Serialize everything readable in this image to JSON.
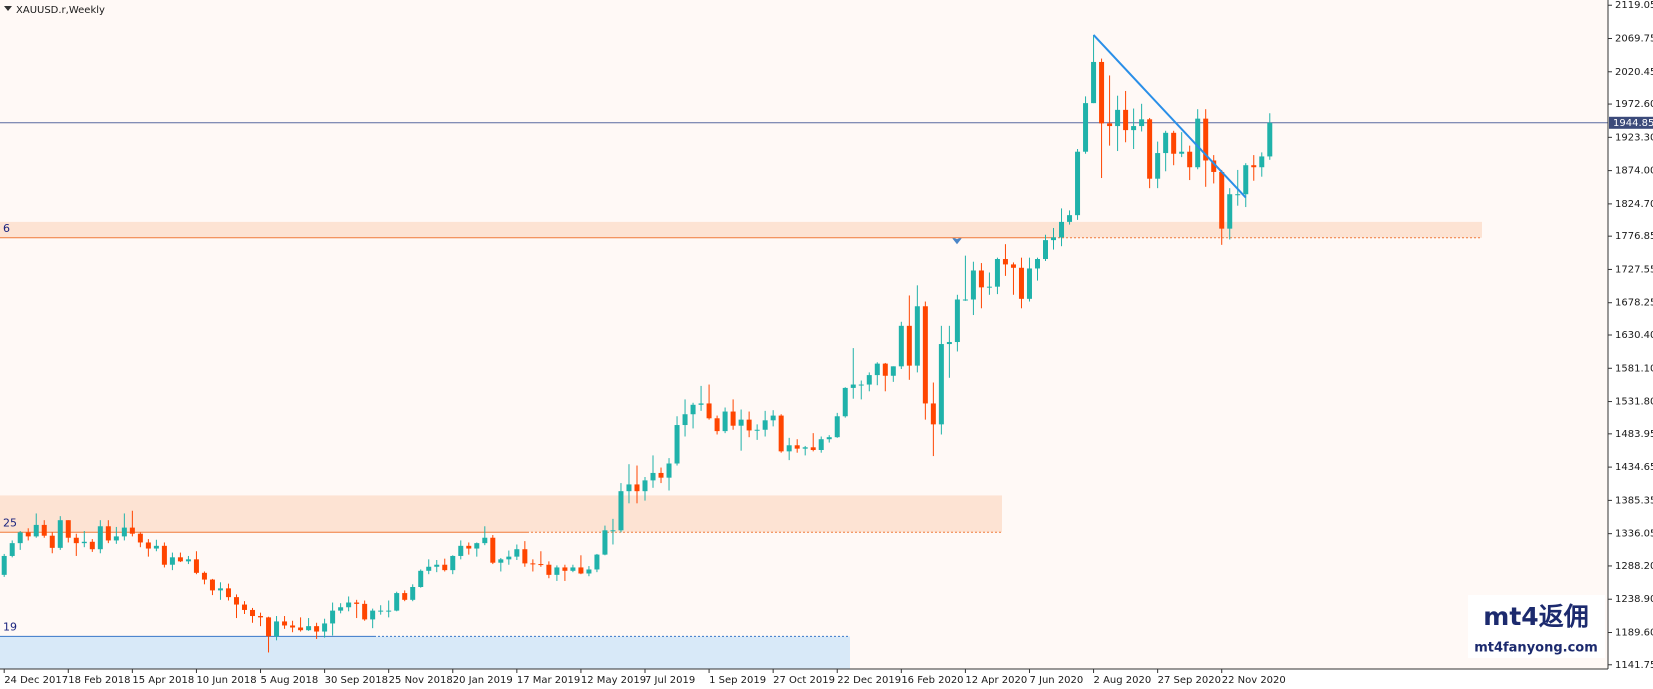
{
  "chart_data": {
    "type": "candlestick",
    "title": "XAUUSD.r,Weekly",
    "categories": [
      "24 Dec 2017",
      null,
      null,
      null,
      null,
      null,
      null,
      null,
      "18 Feb 2018",
      null,
      null,
      null,
      null,
      null,
      null,
      null,
      "15 Apr 2018",
      null,
      null,
      null,
      null,
      null,
      null,
      null,
      "10 Jun 2018",
      null,
      null,
      null,
      null,
      null,
      null,
      null,
      "5 Aug 2018",
      null,
      null,
      null,
      null,
      null,
      null,
      null,
      "30 Sep 2018",
      null,
      null,
      null,
      null,
      null,
      null,
      null,
      "25 Nov 2018",
      null,
      null,
      null,
      null,
      null,
      null,
      null,
      "20 Jan 2019",
      null,
      null,
      null,
      null,
      null,
      null,
      null,
      "17 Mar 2019",
      null,
      null,
      null,
      null,
      null,
      null,
      null,
      "12 May 2019",
      null,
      null,
      null,
      null,
      null,
      null,
      null,
      "7 Jul 2019",
      null,
      null,
      null,
      null,
      null,
      null,
      null,
      "1 Sep 2019",
      null,
      null,
      null,
      null,
      null,
      null,
      null,
      "27 Oct 2019",
      null,
      null,
      null,
      null,
      null,
      null,
      null,
      "22 Dec 2019",
      null,
      null,
      null,
      null,
      null,
      null,
      null,
      "16 Feb 2020",
      null,
      null,
      null,
      null,
      null,
      null,
      null,
      "12 Apr 2020",
      null,
      null,
      null,
      null,
      null,
      null,
      null,
      "7 Jun 2020",
      null,
      null,
      null,
      null,
      null,
      null,
      null,
      "2 Aug 2020",
      null,
      null,
      null,
      null,
      null,
      null,
      null,
      "27 Sep 2020",
      null,
      null,
      null,
      null,
      null,
      null,
      null,
      "22 Nov 2020",
      null,
      null,
      null,
      null,
      null,
      null
    ],
    "ohlc": [
      [
        1275,
        1306,
        1272,
        1303
      ],
      [
        1303,
        1326,
        1301,
        1322
      ],
      [
        1322,
        1340,
        1312,
        1338
      ],
      [
        1338,
        1344,
        1326,
        1332
      ],
      [
        1332,
        1366,
        1330,
        1349
      ],
      [
        1349,
        1356,
        1330,
        1333
      ],
      [
        1333,
        1338,
        1307,
        1315
      ],
      [
        1315,
        1362,
        1312,
        1356
      ],
      [
        1356,
        1356,
        1323,
        1330
      ],
      [
        1330,
        1336,
        1303,
        1322
      ],
      [
        1322,
        1340,
        1316,
        1324
      ],
      [
        1324,
        1328,
        1309,
        1313
      ],
      [
        1313,
        1356,
        1307,
        1347
      ],
      [
        1347,
        1356,
        1322,
        1326
      ],
      [
        1326,
        1346,
        1321,
        1332
      ],
      [
        1332,
        1366,
        1326,
        1345
      ],
      [
        1345,
        1370,
        1332,
        1336
      ],
      [
        1336,
        1338,
        1316,
        1323
      ],
      [
        1323,
        1328,
        1302,
        1314
      ],
      [
        1314,
        1327,
        1310,
        1318
      ],
      [
        1318,
        1323,
        1286,
        1290
      ],
      [
        1290,
        1308,
        1282,
        1301
      ],
      [
        1301,
        1308,
        1294,
        1295
      ],
      [
        1295,
        1303,
        1291,
        1298
      ],
      [
        1298,
        1310,
        1276,
        1278
      ],
      [
        1278,
        1280,
        1261,
        1268
      ],
      [
        1268,
        1269,
        1245,
        1252
      ],
      [
        1252,
        1264,
        1238,
        1255
      ],
      [
        1255,
        1262,
        1237,
        1242
      ],
      [
        1242,
        1246,
        1211,
        1231
      ],
      [
        1231,
        1236,
        1217,
        1223
      ],
      [
        1223,
        1226,
        1204,
        1214
      ],
      [
        1214,
        1219,
        1199,
        1212
      ],
      [
        1212,
        1213,
        1160,
        1184
      ],
      [
        1184,
        1214,
        1178,
        1206
      ],
      [
        1206,
        1214,
        1195,
        1200
      ],
      [
        1200,
        1207,
        1190,
        1197
      ],
      [
        1197,
        1212,
        1191,
        1193
      ],
      [
        1193,
        1211,
        1192,
        1199
      ],
      [
        1199,
        1204,
        1180,
        1191
      ],
      [
        1191,
        1210,
        1182,
        1203
      ],
      [
        1203,
        1234,
        1185,
        1222
      ],
      [
        1222,
        1233,
        1218,
        1227
      ],
      [
        1227,
        1243,
        1221,
        1234
      ],
      [
        1234,
        1238,
        1211,
        1232
      ],
      [
        1232,
        1237,
        1207,
        1209
      ],
      [
        1209,
        1225,
        1196,
        1222
      ],
      [
        1222,
        1230,
        1216,
        1222
      ],
      [
        1222,
        1237,
        1212,
        1222
      ],
      [
        1222,
        1250,
        1221,
        1248
      ],
      [
        1248,
        1252,
        1236,
        1238
      ],
      [
        1238,
        1261,
        1236,
        1257
      ],
      [
        1257,
        1283,
        1256,
        1281
      ],
      [
        1281,
        1298,
        1276,
        1287
      ],
      [
        1287,
        1297,
        1279,
        1290
      ],
      [
        1290,
        1299,
        1280,
        1282
      ],
      [
        1282,
        1304,
        1276,
        1303
      ],
      [
        1303,
        1326,
        1298,
        1318
      ],
      [
        1318,
        1323,
        1305,
        1314
      ],
      [
        1314,
        1323,
        1302,
        1322
      ],
      [
        1322,
        1347,
        1319,
        1330
      ],
      [
        1330,
        1334,
        1291,
        1293
      ],
      [
        1293,
        1300,
        1280,
        1298
      ],
      [
        1298,
        1311,
        1290,
        1302
      ],
      [
        1302,
        1320,
        1297,
        1313
      ],
      [
        1313,
        1325,
        1287,
        1292
      ],
      [
        1292,
        1298,
        1280,
        1291
      ],
      [
        1291,
        1310,
        1287,
        1290
      ],
      [
        1290,
        1295,
        1270,
        1275
      ],
      [
        1275,
        1289,
        1266,
        1286
      ],
      [
        1286,
        1290,
        1266,
        1281
      ],
      [
        1281,
        1290,
        1279,
        1286
      ],
      [
        1286,
        1304,
        1276,
        1277
      ],
      [
        1277,
        1288,
        1273,
        1283
      ],
      [
        1283,
        1306,
        1279,
        1305
      ],
      [
        1305,
        1348,
        1304,
        1341
      ],
      [
        1341,
        1358,
        1320,
        1341
      ],
      [
        1341,
        1411,
        1338,
        1399
      ],
      [
        1399,
        1439,
        1381,
        1409
      ],
      [
        1409,
        1437,
        1381,
        1399
      ],
      [
        1399,
        1420,
        1385,
        1415
      ],
      [
        1415,
        1452,
        1404,
        1426
      ],
      [
        1426,
        1434,
        1411,
        1419
      ],
      [
        1419,
        1448,
        1400,
        1440
      ],
      [
        1440,
        1510,
        1437,
        1497
      ],
      [
        1497,
        1535,
        1480,
        1513
      ],
      [
        1513,
        1530,
        1492,
        1527
      ],
      [
        1527,
        1555,
        1518,
        1529
      ],
      [
        1529,
        1557,
        1505,
        1507
      ],
      [
        1507,
        1511,
        1483,
        1488
      ],
      [
        1488,
        1523,
        1485,
        1517
      ],
      [
        1517,
        1535,
        1490,
        1496
      ],
      [
        1496,
        1520,
        1459,
        1505
      ],
      [
        1505,
        1517,
        1479,
        1489
      ],
      [
        1489,
        1498,
        1475,
        1490
      ],
      [
        1490,
        1518,
        1480,
        1504
      ],
      [
        1504,
        1519,
        1495,
        1511
      ],
      [
        1511,
        1513,
        1456,
        1458
      ],
      [
        1458,
        1478,
        1445,
        1467
      ],
      [
        1467,
        1476,
        1456,
        1462
      ],
      [
        1462,
        1466,
        1452,
        1464
      ],
      [
        1464,
        1485,
        1458,
        1460
      ],
      [
        1460,
        1480,
        1456,
        1476
      ],
      [
        1476,
        1482,
        1471,
        1479
      ],
      [
        1479,
        1515,
        1478,
        1510
      ],
      [
        1510,
        1553,
        1508,
        1552
      ],
      [
        1552,
        1611,
        1536,
        1557
      ],
      [
        1557,
        1563,
        1535,
        1557
      ],
      [
        1557,
        1575,
        1547,
        1571
      ],
      [
        1571,
        1590,
        1556,
        1588
      ],
      [
        1588,
        1589,
        1547,
        1570
      ],
      [
        1570,
        1584,
        1561,
        1584
      ],
      [
        1584,
        1650,
        1580,
        1644
      ],
      [
        1644,
        1689,
        1564,
        1585
      ],
      [
        1585,
        1704,
        1575,
        1673
      ],
      [
        1673,
        1680,
        1505,
        1529
      ],
      [
        1529,
        1560,
        1451,
        1498
      ],
      [
        1498,
        1644,
        1483,
        1617
      ],
      [
        1617,
        1644,
        1567,
        1620
      ],
      [
        1620,
        1690,
        1606,
        1683
      ],
      [
        1683,
        1748,
        1681,
        1683
      ],
      [
        1683,
        1739,
        1660,
        1726
      ],
      [
        1726,
        1737,
        1670,
        1701
      ],
      [
        1701,
        1723,
        1690,
        1702
      ],
      [
        1702,
        1745,
        1691,
        1743
      ],
      [
        1743,
        1765,
        1718,
        1735
      ],
      [
        1735,
        1738,
        1690,
        1730
      ],
      [
        1730,
        1745,
        1670,
        1684
      ],
      [
        1684,
        1745,
        1680,
        1729
      ],
      [
        1729,
        1745,
        1711,
        1743
      ],
      [
        1743,
        1779,
        1740,
        1771
      ],
      [
        1771,
        1789,
        1757,
        1775
      ],
      [
        1775,
        1818,
        1762,
        1798
      ],
      [
        1798,
        1815,
        1794,
        1808
      ],
      [
        1808,
        1906,
        1801,
        1902
      ],
      [
        1902,
        1984,
        1899,
        1974
      ],
      [
        1974,
        2075,
        1974,
        2035
      ],
      [
        2035,
        2040,
        1863,
        1944
      ],
      [
        1944,
        2015,
        1911,
        1940
      ],
      [
        1940,
        1985,
        1903,
        1964
      ],
      [
        1964,
        1992,
        1916,
        1934
      ],
      [
        1934,
        1966,
        1906,
        1940
      ],
      [
        1940,
        1973,
        1932,
        1950
      ],
      [
        1950,
        1952,
        1848,
        1862
      ],
      [
        1862,
        1917,
        1848,
        1900
      ],
      [
        1900,
        1933,
        1873,
        1930
      ],
      [
        1930,
        1933,
        1882,
        1899
      ],
      [
        1899,
        1931,
        1894,
        1902
      ],
      [
        1902,
        1911,
        1860,
        1879
      ],
      [
        1879,
        1965,
        1876,
        1951
      ],
      [
        1951,
        1965,
        1850,
        1889
      ],
      [
        1889,
        1897,
        1855,
        1872
      ],
      [
        1872,
        1875,
        1764,
        1788
      ],
      [
        1788,
        1848,
        1772,
        1839
      ],
      [
        1839,
        1875,
        1822,
        1839
      ],
      [
        1839,
        1885,
        1820,
        1882
      ],
      [
        1882,
        1897,
        1859,
        1879
      ],
      [
        1879,
        1901,
        1865,
        1895
      ],
      [
        1895,
        1959,
        1890,
        1944.85
      ]
    ],
    "up_color": "#20b2aa",
    "down_color": "#ff4500",
    "ylim": [
      1135.5,
      2126.8
    ],
    "yticks": [
      2119.05,
      2069.75,
      2020.45,
      {
        "value": 1972.6,
        "label": "1972.60"
      },
      {
        "value": 1923.3,
        "label": "1923.30"
      },
      {
        "value": 1874,
        "label": "1874.00"
      },
      {
        "value": 1824.7,
        "label": "1824.70"
      },
      1776.85,
      1727.55,
      1678.25,
      {
        "value": 1630.4,
        "label": "1630.40"
      },
      {
        "value": 1581.1,
        "label": "1581.10"
      },
      {
        "value": 1531.8,
        "label": "1531.80"
      },
      1483.95,
      1434.65,
      1385.35,
      1336.05,
      {
        "value": 1288.2,
        "label": "1288.20"
      },
      {
        "value": 1238.9,
        "label": "1238.90"
      },
      {
        "value": 1189.6,
        "label": "1189.60"
      },
      1141.75
    ],
    "grid": false,
    "current_price": 1944.85,
    "zones": [
      {
        "label": "6",
        "top": 1798,
        "bottom": 1774.5,
        "level": 1774.5,
        "color": "#fde3d3",
        "line_color": "#f07a3a"
      },
      {
        "label": "25",
        "top": 1392.7,
        "bottom": 1338.1,
        "level": 1338.1,
        "color": "#fde3d3",
        "line_color": "#f07a3a"
      },
      {
        "label": "19",
        "top": 1183.8,
        "bottom": 1135.5,
        "level": 1183.8,
        "color": "#d8e9f8",
        "line_color": "#3a78c8"
      }
    ],
    "trendline": {
      "x": [
        136,
        155
      ],
      "y": [
        2075,
        1834
      ],
      "color": "#2a8fe8"
    },
    "watermark": {
      "logo": "mt4返佣",
      "url": "mt4fanyong.com"
    }
  }
}
